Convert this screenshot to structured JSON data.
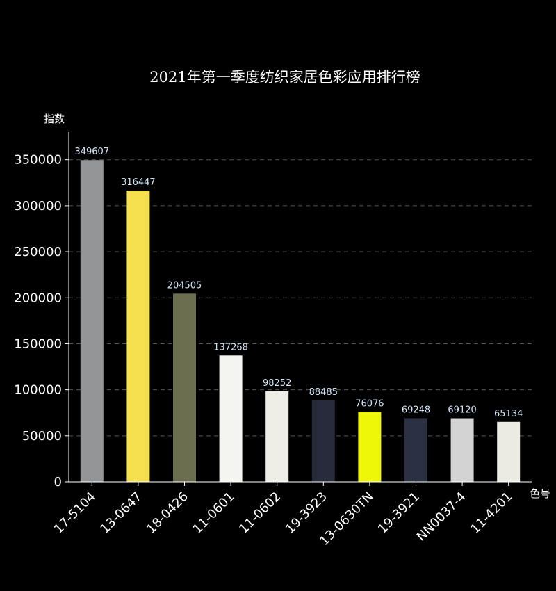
{
  "chart_data": {
    "type": "bar",
    "title": "2021年第一季度纺织家居色彩应用排行榜",
    "xlabel": "色号",
    "ylabel": "指数",
    "categories": [
      "17-5104",
      "13-0647",
      "18-0426",
      "11-0601",
      "11-0602",
      "19-3923",
      "13-0630TN",
      "19-3921",
      "NN0037-4",
      "11-4201"
    ],
    "values": [
      349607,
      316447,
      204505,
      137268,
      98252,
      88485,
      76076,
      69248,
      69120,
      65134
    ],
    "colors": [
      "#939597",
      "#f5df4d",
      "#6b6d4f",
      "#f4f5f0",
      "#eeeee6",
      "#272b3b",
      "#eef707",
      "#2b3142",
      "#d3d3d3",
      "#ebebe4"
    ],
    "ylim": [
      0,
      380000
    ],
    "yticks": [
      0,
      50000,
      100000,
      150000,
      200000,
      250000,
      300000,
      350000
    ],
    "grid": "horizontal-dashed",
    "legend": "none",
    "theme": {
      "background": "#000000",
      "text": "#ffffff",
      "data_label": "#cfe3f5",
      "grid": "#555555",
      "axis": "#ffffff"
    }
  }
}
